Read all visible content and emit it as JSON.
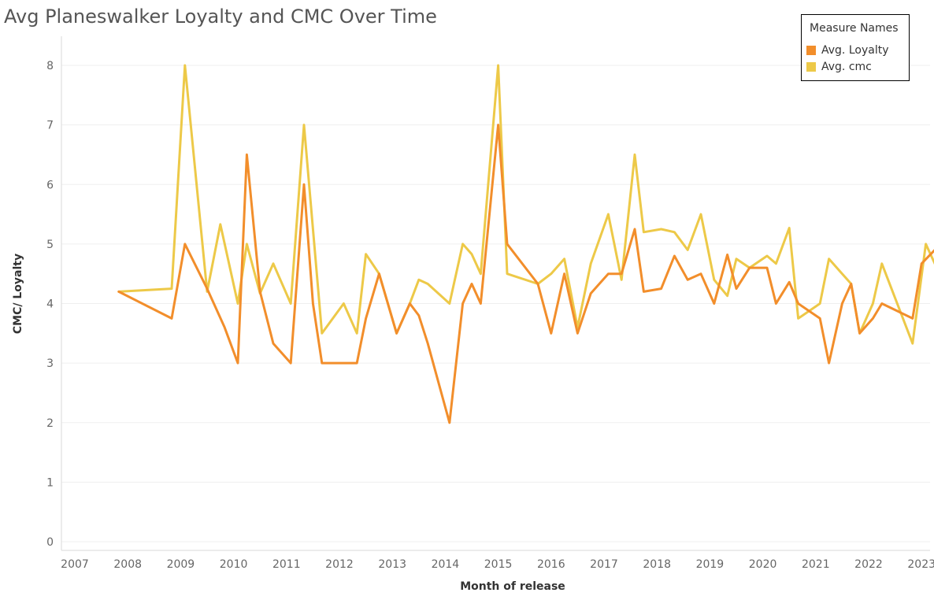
{
  "chart_data": {
    "type": "line",
    "title": "Avg Planeswalker Loyalty and CMC Over Time",
    "xlabel": "Month of release",
    "ylabel": "CMC/ Loyalty",
    "ylim": [
      0,
      8
    ],
    "yticks": [
      0,
      1,
      2,
      3,
      4,
      5,
      6,
      7,
      8
    ],
    "xlim": [
      2007.0,
      2023.4
    ],
    "xticks": [
      "2007",
      "2008",
      "2009",
      "2010",
      "2011",
      "2012",
      "2013",
      "2014",
      "2015",
      "2016",
      "2017",
      "2018",
      "2019",
      "2020",
      "2021",
      "2022",
      "2023"
    ],
    "grid": true,
    "legend": {
      "title": "Measure Names",
      "position": "top-right",
      "entries": [
        "Avg. Loyalty",
        "Avg. cmc"
      ]
    },
    "series": [
      {
        "name": "Avg. Loyalty",
        "color": "#F28E2B",
        "points": [
          [
            2007.83,
            4.2
          ],
          [
            2008.83,
            3.75
          ],
          [
            2009.08,
            5.0
          ],
          [
            2009.5,
            4.25
          ],
          [
            2009.83,
            3.6
          ],
          [
            2010.08,
            3.0
          ],
          [
            2010.25,
            6.5
          ],
          [
            2010.5,
            4.2
          ],
          [
            2010.75,
            3.33
          ],
          [
            2011.08,
            3.0
          ],
          [
            2011.33,
            6.0
          ],
          [
            2011.5,
            4.0
          ],
          [
            2011.67,
            3.0
          ],
          [
            2012.0,
            3.0
          ],
          [
            2012.33,
            3.0
          ],
          [
            2012.5,
            3.75
          ],
          [
            2012.75,
            4.5
          ],
          [
            2013.08,
            3.5
          ],
          [
            2013.33,
            4.0
          ],
          [
            2013.5,
            3.8
          ],
          [
            2013.67,
            3.33
          ],
          [
            2014.08,
            2.0
          ],
          [
            2014.33,
            4.0
          ],
          [
            2014.5,
            4.33
          ],
          [
            2014.67,
            4.0
          ],
          [
            2015.0,
            7.0
          ],
          [
            2015.17,
            5.0
          ],
          [
            2015.75,
            4.33
          ],
          [
            2016.0,
            3.5
          ],
          [
            2016.25,
            4.5
          ],
          [
            2016.5,
            3.5
          ],
          [
            2016.75,
            4.17
          ],
          [
            2017.08,
            4.5
          ],
          [
            2017.33,
            4.5
          ],
          [
            2017.58,
            5.25
          ],
          [
            2017.75,
            4.2
          ],
          [
            2018.08,
            4.25
          ],
          [
            2018.33,
            4.8
          ],
          [
            2018.58,
            4.4
          ],
          [
            2018.83,
            4.5
          ],
          [
            2019.08,
            4.0
          ],
          [
            2019.33,
            4.82
          ],
          [
            2019.5,
            4.25
          ],
          [
            2019.75,
            4.6
          ],
          [
            2020.08,
            4.6
          ],
          [
            2020.25,
            4.0
          ],
          [
            2020.5,
            4.36
          ],
          [
            2020.67,
            4.0
          ],
          [
            2021.08,
            3.75
          ],
          [
            2021.25,
            3.0
          ],
          [
            2021.5,
            4.0
          ],
          [
            2021.67,
            4.33
          ],
          [
            2021.83,
            3.5
          ],
          [
            2022.08,
            3.75
          ],
          [
            2022.25,
            4.0
          ],
          [
            2022.83,
            3.75
          ],
          [
            2023.0,
            4.67
          ],
          [
            2023.25,
            4.9
          ],
          [
            2023.4,
            4.33
          ]
        ]
      },
      {
        "name": "Avg. cmc",
        "color": "#EDC948",
        "points": [
          [
            2007.83,
            4.2
          ],
          [
            2008.83,
            4.25
          ],
          [
            2009.08,
            8.0
          ],
          [
            2009.5,
            4.2
          ],
          [
            2009.75,
            5.33
          ],
          [
            2010.08,
            4.0
          ],
          [
            2010.25,
            5.0
          ],
          [
            2010.5,
            4.17
          ],
          [
            2010.75,
            4.67
          ],
          [
            2011.08,
            4.0
          ],
          [
            2011.33,
            7.0
          ],
          [
            2011.67,
            3.5
          ],
          [
            2012.08,
            4.0
          ],
          [
            2012.33,
            3.5
          ],
          [
            2012.5,
            4.83
          ],
          [
            2012.75,
            4.5
          ],
          [
            2013.08,
            3.5
          ],
          [
            2013.33,
            4.0
          ],
          [
            2013.5,
            4.4
          ],
          [
            2013.67,
            4.33
          ],
          [
            2014.08,
            4.0
          ],
          [
            2014.33,
            5.0
          ],
          [
            2014.5,
            4.83
          ],
          [
            2014.67,
            4.5
          ],
          [
            2015.0,
            8.0
          ],
          [
            2015.17,
            4.5
          ],
          [
            2015.75,
            4.33
          ],
          [
            2016.0,
            4.5
          ],
          [
            2016.25,
            4.75
          ],
          [
            2016.5,
            3.6
          ],
          [
            2016.75,
            4.67
          ],
          [
            2017.08,
            5.5
          ],
          [
            2017.33,
            4.4
          ],
          [
            2017.58,
            6.5
          ],
          [
            2017.75,
            5.2
          ],
          [
            2018.08,
            5.25
          ],
          [
            2018.33,
            5.2
          ],
          [
            2018.58,
            4.9
          ],
          [
            2018.83,
            5.5
          ],
          [
            2019.08,
            4.4
          ],
          [
            2019.33,
            4.13
          ],
          [
            2019.5,
            4.75
          ],
          [
            2019.75,
            4.6
          ],
          [
            2020.08,
            4.8
          ],
          [
            2020.25,
            4.67
          ],
          [
            2020.5,
            5.27
          ],
          [
            2020.67,
            3.75
          ],
          [
            2021.08,
            4.0
          ],
          [
            2021.25,
            4.75
          ],
          [
            2021.5,
            4.5
          ],
          [
            2021.67,
            4.33
          ],
          [
            2021.83,
            3.5
          ],
          [
            2022.08,
            4.0
          ],
          [
            2022.25,
            4.67
          ],
          [
            2022.83,
            3.33
          ],
          [
            2023.08,
            5.0
          ],
          [
            2023.25,
            4.67
          ]
        ]
      }
    ]
  }
}
